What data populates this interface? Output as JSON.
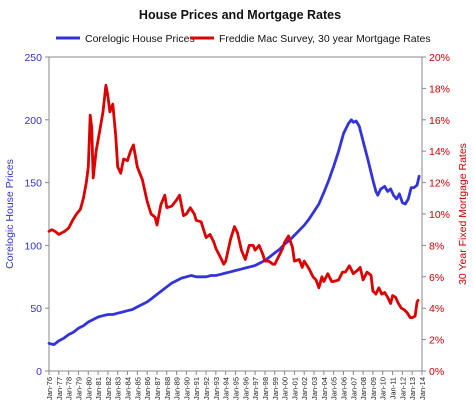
{
  "chart_data": {
    "type": "line",
    "title": "House Prices and Mortgage Rates",
    "legend_position": "top",
    "grid": false,
    "x_tick_labels": [
      "Jan-76",
      "Jan-77",
      "Jan-78",
      "Jan-79",
      "Jan-80",
      "Jan-81",
      "Jan-82",
      "Jan-83",
      "Jan-84",
      "Jan-85",
      "Jan-86",
      "Jan-87",
      "Jan-88",
      "Jan-89",
      "Jan-90",
      "Jan-91",
      "Jan-92",
      "Jan-93",
      "Jan-94",
      "Jan-95",
      "Jan-96",
      "Jan-97",
      "Jan-98",
      "Jan-99",
      "Jan-00",
      "Jan-01",
      "Jan-02",
      "Jan-03",
      "Jan-04",
      "Jan-05",
      "Jan-06",
      "Jan-07",
      "Jan-08",
      "Jan-09",
      "Jan-10",
      "Jan-11",
      "Jan-12",
      "Jan-13",
      "Jan-14"
    ],
    "xlim": [
      1976,
      2014
    ],
    "left_axis": {
      "label": "Corelogic House Prices",
      "ylim": [
        0,
        250
      ],
      "ticks": [
        0,
        50,
        100,
        150,
        200,
        250
      ],
      "tick_labels": [
        "0",
        "50",
        "100",
        "150",
        "200",
        "250"
      ],
      "color": "#3333cc"
    },
    "right_axis": {
      "label": "30 Year Fixed Mortgage Rates",
      "ylim": [
        0,
        20
      ],
      "ticks": [
        0,
        2,
        4,
        6,
        8,
        10,
        12,
        14,
        16,
        18,
        20
      ],
      "tick_labels": [
        "0%",
        "2%",
        "4%",
        "6%",
        "8%",
        "10%",
        "12%",
        "14%",
        "16%",
        "18%",
        "20%"
      ],
      "color": "#cc0000"
    },
    "series": [
      {
        "name": "Corelogic House Prices",
        "axis": "left",
        "color": "#3333dd",
        "points": [
          [
            1976.0,
            22
          ],
          [
            1976.5,
            21
          ],
          [
            1977.0,
            24
          ],
          [
            1977.5,
            26
          ],
          [
            1978.0,
            29
          ],
          [
            1978.5,
            31
          ],
          [
            1979.0,
            34
          ],
          [
            1979.5,
            36
          ],
          [
            1980.0,
            39
          ],
          [
            1980.5,
            41
          ],
          [
            1981.0,
            43
          ],
          [
            1981.5,
            44
          ],
          [
            1982.0,
            45
          ],
          [
            1982.5,
            45
          ],
          [
            1983.0,
            46
          ],
          [
            1983.5,
            47
          ],
          [
            1984.0,
            48
          ],
          [
            1984.5,
            49
          ],
          [
            1985.0,
            51
          ],
          [
            1985.5,
            53
          ],
          [
            1986.0,
            55
          ],
          [
            1986.5,
            58
          ],
          [
            1987.0,
            61
          ],
          [
            1987.5,
            64
          ],
          [
            1988.0,
            67
          ],
          [
            1988.5,
            70
          ],
          [
            1989.0,
            72
          ],
          [
            1989.5,
            74
          ],
          [
            1990.0,
            75
          ],
          [
            1990.5,
            76
          ],
          [
            1991.0,
            75
          ],
          [
            1991.5,
            75
          ],
          [
            1992.0,
            75
          ],
          [
            1992.5,
            76
          ],
          [
            1993.0,
            76
          ],
          [
            1993.5,
            77
          ],
          [
            1994.0,
            78
          ],
          [
            1994.5,
            79
          ],
          [
            1995.0,
            80
          ],
          [
            1995.5,
            81
          ],
          [
            1996.0,
            82
          ],
          [
            1996.5,
            83
          ],
          [
            1997.0,
            84
          ],
          [
            1997.5,
            86
          ],
          [
            1998.0,
            88
          ],
          [
            1998.5,
            91
          ],
          [
            1999.0,
            94
          ],
          [
            1999.5,
            97
          ],
          [
            2000.0,
            101
          ],
          [
            2000.5,
            104
          ],
          [
            2001.0,
            108
          ],
          [
            2001.5,
            112
          ],
          [
            2002.0,
            116
          ],
          [
            2002.5,
            121
          ],
          [
            2003.0,
            127
          ],
          [
            2003.5,
            133
          ],
          [
            2004.0,
            142
          ],
          [
            2004.5,
            152
          ],
          [
            2005.0,
            163
          ],
          [
            2005.5,
            175
          ],
          [
            2006.0,
            189
          ],
          [
            2006.5,
            197
          ],
          [
            2006.8,
            200
          ],
          [
            2007.0,
            198
          ],
          [
            2007.3,
            199
          ],
          [
            2007.6,
            195
          ],
          [
            2008.0,
            183
          ],
          [
            2008.5,
            168
          ],
          [
            2009.0,
            152
          ],
          [
            2009.3,
            143
          ],
          [
            2009.5,
            140
          ],
          [
            2009.8,
            145
          ],
          [
            2010.2,
            147
          ],
          [
            2010.5,
            143
          ],
          [
            2010.8,
            145
          ],
          [
            2011.1,
            140
          ],
          [
            2011.4,
            137
          ],
          [
            2011.7,
            141
          ],
          [
            2012.0,
            134
          ],
          [
            2012.3,
            133
          ],
          [
            2012.6,
            137
          ],
          [
            2012.9,
            146
          ],
          [
            2013.2,
            146
          ],
          [
            2013.5,
            148
          ],
          [
            2013.7,
            155
          ]
        ]
      },
      {
        "name": "Freddie Mac Survey, 30 year Mortgage Rates",
        "axis": "right",
        "color": "#dd0000",
        "points": [
          [
            1976.0,
            8.9
          ],
          [
            1976.3,
            9.0
          ],
          [
            1976.6,
            8.9
          ],
          [
            1977.0,
            8.7
          ],
          [
            1977.3,
            8.8
          ],
          [
            1977.6,
            8.9
          ],
          [
            1978.0,
            9.1
          ],
          [
            1978.4,
            9.6
          ],
          [
            1978.8,
            10.0
          ],
          [
            1979.2,
            10.3
          ],
          [
            1979.5,
            11.0
          ],
          [
            1979.8,
            12.0
          ],
          [
            1980.0,
            13.0
          ],
          [
            1980.2,
            16.3
          ],
          [
            1980.35,
            15.5
          ],
          [
            1980.5,
            12.3
          ],
          [
            1980.8,
            14.0
          ],
          [
            1981.2,
            15.4
          ],
          [
            1981.5,
            16.5
          ],
          [
            1981.8,
            18.2
          ],
          [
            1982.0,
            17.5
          ],
          [
            1982.2,
            16.5
          ],
          [
            1982.5,
            17.0
          ],
          [
            1982.8,
            15.0
          ],
          [
            1983.0,
            13.0
          ],
          [
            1983.3,
            12.6
          ],
          [
            1983.6,
            13.5
          ],
          [
            1984.0,
            13.4
          ],
          [
            1984.3,
            14.0
          ],
          [
            1984.6,
            14.4
          ],
          [
            1985.0,
            13.0
          ],
          [
            1985.5,
            12.2
          ],
          [
            1986.0,
            10.8
          ],
          [
            1986.4,
            10.0
          ],
          [
            1986.8,
            9.8
          ],
          [
            1987.0,
            9.3
          ],
          [
            1987.4,
            10.6
          ],
          [
            1987.8,
            11.2
          ],
          [
            1988.0,
            10.4
          ],
          [
            1988.5,
            10.5
          ],
          [
            1989.0,
            10.9
          ],
          [
            1989.3,
            11.2
          ],
          [
            1989.7,
            9.9
          ],
          [
            1990.0,
            10.0
          ],
          [
            1990.4,
            10.4
          ],
          [
            1990.8,
            10.0
          ],
          [
            1991.0,
            9.6
          ],
          [
            1991.5,
            9.5
          ],
          [
            1992.0,
            8.5
          ],
          [
            1992.4,
            8.7
          ],
          [
            1992.8,
            8.2
          ],
          [
            1993.0,
            7.8
          ],
          [
            1993.5,
            7.2
          ],
          [
            1993.8,
            6.8
          ],
          [
            1994.0,
            7.0
          ],
          [
            1994.5,
            8.4
          ],
          [
            1994.9,
            9.2
          ],
          [
            1995.2,
            8.8
          ],
          [
            1995.6,
            7.7
          ],
          [
            1996.0,
            7.1
          ],
          [
            1996.4,
            8.0
          ],
          [
            1996.8,
            8.0
          ],
          [
            1997.0,
            7.7
          ],
          [
            1997.4,
            8.0
          ],
          [
            1997.8,
            7.4
          ],
          [
            1998.0,
            7.0
          ],
          [
            1998.4,
            7.0
          ],
          [
            1998.8,
            6.8
          ],
          [
            1999.0,
            6.8
          ],
          [
            1999.4,
            7.3
          ],
          [
            1999.8,
            7.8
          ],
          [
            2000.0,
            8.2
          ],
          [
            2000.4,
            8.6
          ],
          [
            2000.8,
            7.9
          ],
          [
            2001.0,
            7.0
          ],
          [
            2001.5,
            7.1
          ],
          [
            2001.8,
            6.6
          ],
          [
            2002.0,
            7.0
          ],
          [
            2002.5,
            6.5
          ],
          [
            2002.9,
            6.0
          ],
          [
            2003.2,
            5.8
          ],
          [
            2003.5,
            5.3
          ],
          [
            2003.8,
            6.0
          ],
          [
            2004.0,
            5.7
          ],
          [
            2004.4,
            6.2
          ],
          [
            2004.8,
            5.7
          ],
          [
            2005.0,
            5.7
          ],
          [
            2005.5,
            5.8
          ],
          [
            2005.9,
            6.3
          ],
          [
            2006.2,
            6.3
          ],
          [
            2006.6,
            6.7
          ],
          [
            2007.0,
            6.2
          ],
          [
            2007.4,
            6.4
          ],
          [
            2007.7,
            6.6
          ],
          [
            2008.0,
            5.8
          ],
          [
            2008.4,
            6.3
          ],
          [
            2008.8,
            6.1
          ],
          [
            2009.0,
            5.1
          ],
          [
            2009.3,
            4.9
          ],
          [
            2009.6,
            5.3
          ],
          [
            2009.9,
            4.9
          ],
          [
            2010.2,
            5.0
          ],
          [
            2010.5,
            4.7
          ],
          [
            2010.8,
            4.3
          ],
          [
            2011.0,
            4.8
          ],
          [
            2011.3,
            4.7
          ],
          [
            2011.6,
            4.3
          ],
          [
            2011.9,
            4.0
          ],
          [
            2012.2,
            3.9
          ],
          [
            2012.5,
            3.7
          ],
          [
            2012.8,
            3.4
          ],
          [
            2013.0,
            3.4
          ],
          [
            2013.3,
            3.5
          ],
          [
            2013.5,
            4.4
          ],
          [
            2013.6,
            4.5
          ]
        ]
      }
    ]
  }
}
